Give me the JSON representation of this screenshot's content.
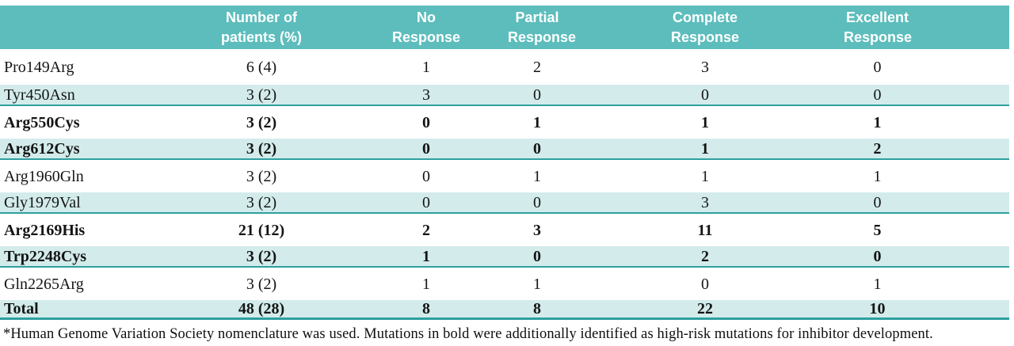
{
  "colors": {
    "header_bg": "#5cbdbc",
    "row_shade": "#d3eceb",
    "row_border": "#2f9f9f",
    "header_text": "#ffffff",
    "body_text": "#141414"
  },
  "header": {
    "cols": [
      {
        "line1": "",
        "line2": ""
      },
      {
        "line1": "Number of",
        "line2": "patients (%)"
      },
      {
        "line1": "No",
        "line2": "Response"
      },
      {
        "line1": "Partial",
        "line2": "Response"
      },
      {
        "line1": "Complete",
        "line2": "Response"
      },
      {
        "line1": "Excellent",
        "line2": "Response"
      }
    ]
  },
  "rows": [
    {
      "label": "Pro149Arg",
      "patients": "6 (4)",
      "no_response": "1",
      "partial_response": "2",
      "complete_response": "3",
      "excellent_response": "0",
      "bold": false
    },
    {
      "label": "Tyr450Asn",
      "patients": "3 (2)",
      "no_response": "3",
      "partial_response": "0",
      "complete_response": "0",
      "excellent_response": "0",
      "bold": false
    },
    {
      "label": "Arg550Cys",
      "patients": "3 (2)",
      "no_response": "0",
      "partial_response": "1",
      "complete_response": "1",
      "excellent_response": "1",
      "bold": true
    },
    {
      "label": "Arg612Cys",
      "patients": "3 (2)",
      "no_response": "0",
      "partial_response": "0",
      "complete_response": "1",
      "excellent_response": "2",
      "bold": true
    },
    {
      "label": "Arg1960Gln",
      "patients": "3 (2)",
      "no_response": "0",
      "partial_response": "1",
      "complete_response": "1",
      "excellent_response": "1",
      "bold": false
    },
    {
      "label": "Gly1979Val",
      "patients": "3 (2)",
      "no_response": "0",
      "partial_response": "0",
      "complete_response": "3",
      "excellent_response": "0",
      "bold": false
    },
    {
      "label": "Arg2169His",
      "patients": "21 (12)",
      "no_response": "2",
      "partial_response": "3",
      "complete_response": "11",
      "excellent_response": "5",
      "bold": true
    },
    {
      "label": "Trp2248Cys",
      "patients": "3 (2)",
      "no_response": "1",
      "partial_response": "0",
      "complete_response": "2",
      "excellent_response": "0",
      "bold": true
    },
    {
      "label": "Gln2265Arg",
      "patients": "3 (2)",
      "no_response": "1",
      "partial_response": "1",
      "complete_response": "0",
      "excellent_response": "1",
      "bold": false
    },
    {
      "label": "Total",
      "patients": "48 (28)",
      "no_response": "8",
      "partial_response": "8",
      "complete_response": "22",
      "excellent_response": "10",
      "bold": true,
      "is_total": true
    }
  ],
  "footnote": "*Human Genome Variation Society nomenclature was used. Mutations in bold were additionally identified as high-risk mutations for inhibitor development."
}
